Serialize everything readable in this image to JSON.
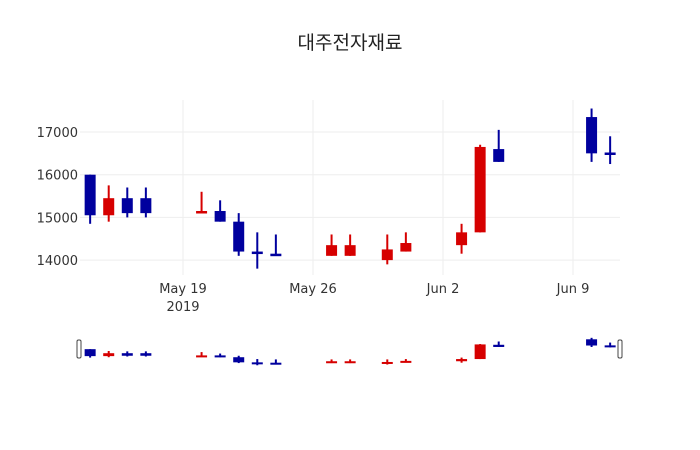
{
  "chart_data": {
    "type": "candlestick",
    "title": "대주전자재료",
    "xlabel": "",
    "ylabel": "",
    "ylim": [
      13700,
      17800
    ],
    "y_ticks": [
      14000,
      15000,
      16000,
      17000
    ],
    "x_ticks": [
      {
        "label": "May 19",
        "sublabel": "2019",
        "date": "2019-05-19"
      },
      {
        "label": "May 26",
        "sublabel": "",
        "date": "2019-05-26"
      },
      {
        "label": "Jun 2",
        "sublabel": "",
        "date": "2019-06-02"
      },
      {
        "label": "Jun 9",
        "sublabel": "",
        "date": "2019-06-09"
      }
    ],
    "xrange": [
      "2019-05-13",
      "2019-06-12"
    ],
    "grid": true,
    "rangeslider": true,
    "increasing_color": "#d60000",
    "decreasing_color": "#00009e",
    "candles": [
      {
        "date": "2019-05-14",
        "open": 16000,
        "high": 16000,
        "low": 14850,
        "close": 15050
      },
      {
        "date": "2019-05-15",
        "open": 15050,
        "high": 15750,
        "low": 14900,
        "close": 15450
      },
      {
        "date": "2019-05-16",
        "open": 15450,
        "high": 15700,
        "low": 15000,
        "close": 15100
      },
      {
        "date": "2019-05-17",
        "open": 15450,
        "high": 15700,
        "low": 15000,
        "close": 15100
      },
      {
        "date": "2019-05-20",
        "open": 15100,
        "high": 15600,
        "low": 15100,
        "close": 15150
      },
      {
        "date": "2019-05-21",
        "open": 15150,
        "high": 15400,
        "low": 14900,
        "close": 14900
      },
      {
        "date": "2019-05-22",
        "open": 14900,
        "high": 15100,
        "low": 14100,
        "close": 14200
      },
      {
        "date": "2019-05-23",
        "open": 14200,
        "high": 14650,
        "low": 13800,
        "close": 14150
      },
      {
        "date": "2019-05-24",
        "open": 14150,
        "high": 14600,
        "low": 14100,
        "close": 14100
      },
      {
        "date": "2019-05-27",
        "open": 14100,
        "high": 14600,
        "low": 14100,
        "close": 14350
      },
      {
        "date": "2019-05-28",
        "open": 14100,
        "high": 14600,
        "low": 14100,
        "close": 14350
      },
      {
        "date": "2019-05-30",
        "open": 14000,
        "high": 14600,
        "low": 13900,
        "close": 14250
      },
      {
        "date": "2019-05-31",
        "open": 14200,
        "high": 14650,
        "low": 14200,
        "close": 14400
      },
      {
        "date": "2019-06-03",
        "open": 14350,
        "high": 14850,
        "low": 14150,
        "close": 14650
      },
      {
        "date": "2019-06-04",
        "open": 14650,
        "high": 16700,
        "low": 14650,
        "close": 16650
      },
      {
        "date": "2019-06-05",
        "open": 16600,
        "high": 17050,
        "low": 16300,
        "close": 16300
      },
      {
        "date": "2019-06-10",
        "open": 17350,
        "high": 17550,
        "low": 16300,
        "close": 16500
      },
      {
        "date": "2019-06-11",
        "open": 16520,
        "high": 16900,
        "low": 16250,
        "close": 16480
      }
    ]
  }
}
